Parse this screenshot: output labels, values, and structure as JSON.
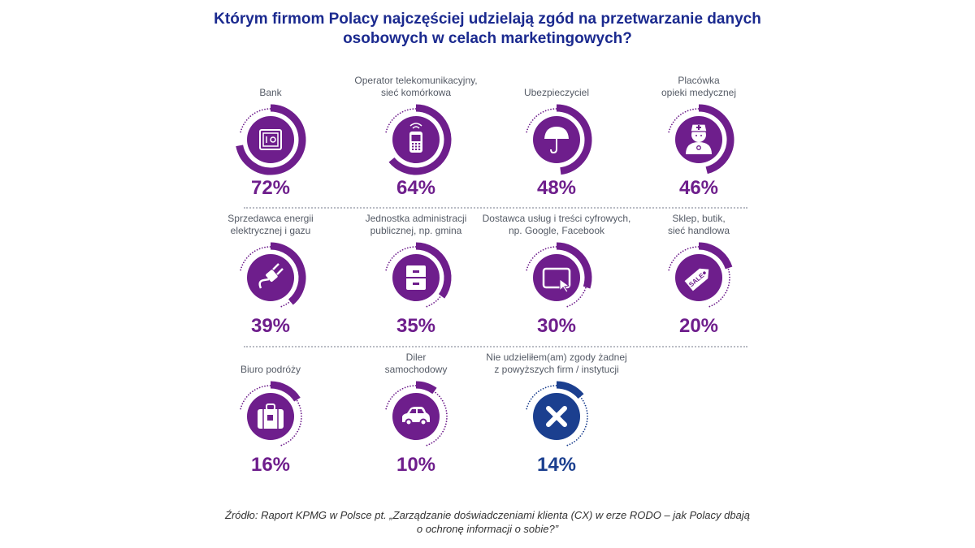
{
  "title_lines": [
    "Którym firmom Polacy najczęściej udzielają zgód na przetwarzanie danych",
    "osobowych w celach marketingowych?"
  ],
  "chart_data": {
    "type": "radial-progress",
    "title": "Którym firmom Polacy najczęściej udzielają zgód na przetwarzanie danych osobowych w celach marketingowych?",
    "unit": "%",
    "items": [
      {
        "label_lines": [
          "Bank"
        ],
        "value": 72,
        "pct_label": "72%",
        "icon": "safe-icon",
        "color": "#6e1e8c"
      },
      {
        "label_lines": [
          "Operator telekomunikacyjny,",
          "sieć komórkowa"
        ],
        "value": 64,
        "pct_label": "64%",
        "icon": "mobile-phone-icon",
        "color": "#6e1e8c"
      },
      {
        "label_lines": [
          "Ubezpieczyciel"
        ],
        "value": 48,
        "pct_label": "48%",
        "icon": "umbrella-icon",
        "color": "#6e1e8c"
      },
      {
        "label_lines": [
          "Placówka",
          "opieki medycznej"
        ],
        "value": 46,
        "pct_label": "46%",
        "icon": "nurse-icon",
        "color": "#6e1e8c"
      },
      {
        "label_lines": [
          "Sprzedawca energii",
          "elektrycznej i gazu"
        ],
        "value": 39,
        "pct_label": "39%",
        "icon": "power-plug-icon",
        "color": "#6e1e8c"
      },
      {
        "label_lines": [
          "Jednostka administracji",
          "publicznej, np. gmina"
        ],
        "value": 35,
        "pct_label": "35%",
        "icon": "filing-cabinet-icon",
        "color": "#6e1e8c"
      },
      {
        "label_lines": [
          "Dostawca usług i treści cyfrowych,",
          "np. Google, Facebook"
        ],
        "value": 30,
        "pct_label": "30%",
        "icon": "tablet-icon",
        "color": "#6e1e8c"
      },
      {
        "label_lines": [
          "Sklep, butik,",
          "sieć handlowa"
        ],
        "value": 20,
        "pct_label": "20%",
        "icon": "sale-tag-icon",
        "tag_text": "SALE",
        "color": "#6e1e8c"
      },
      {
        "label_lines": [
          "Biuro podróży"
        ],
        "value": 16,
        "pct_label": "16%",
        "icon": "suitcase-icon",
        "color": "#6e1e8c"
      },
      {
        "label_lines": [
          "Diler",
          "samochodowy"
        ],
        "value": 10,
        "pct_label": "10%",
        "icon": "car-icon",
        "color": "#6e1e8c"
      },
      {
        "label_lines": [
          "Nie udzieliłem(am) zgody żadnej",
          "z powyższych firm / instytucji"
        ],
        "value": 14,
        "pct_label": "14%",
        "icon": "x-mark-icon",
        "color": "#1b3f8f"
      }
    ]
  },
  "source_lines": [
    "Źródło: Raport KPMG w Polsce pt. „Zarządzanie doświadczeniami klienta (CX) w erze RODO – jak Polacy dbają",
    "o ochronę informacji o sobie?”"
  ],
  "colors": {
    "title": "#1b2a8f",
    "primary": "#6e1e8c",
    "secondary": "#1b3f8f",
    "separator": "#b9bcc4",
    "label": "#555b66"
  }
}
